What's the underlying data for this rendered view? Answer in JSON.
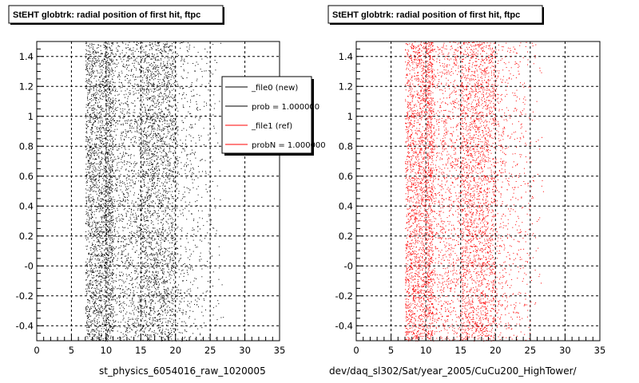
{
  "chart_data": [
    {
      "type": "scatter",
      "title": "StEHT globtrk: radial position of first hit, ftpc",
      "xlabel": "st_physics_6054016_raw_1020005",
      "ylabel": "",
      "xlim": [
        0,
        35
      ],
      "ylim": [
        -0.5,
        1.5
      ],
      "x_ticks": [
        "0",
        "5",
        "10",
        "15",
        "20",
        "25",
        "30",
        "35"
      ],
      "y_ticks": [
        "-0.4",
        "-0.2",
        "-0",
        "0.2",
        "0.4",
        "0.6",
        "0.8",
        "1",
        "1.2",
        "1.4"
      ],
      "grid": true,
      "marker_color": "#000000",
      "x_range_of_points": [
        7,
        27
      ],
      "legend": {
        "placement": "top-right",
        "entries": [
          {
            "label": "_file0 (new)",
            "color": "#000000"
          },
          {
            "label": "prob = 1.000000",
            "color": "#000000"
          },
          {
            "label": "_file1 (ref)",
            "color": "#ff0000"
          },
          {
            "label": "probN = 1.000000",
            "color": "#ff0000"
          }
        ]
      }
    },
    {
      "type": "scatter",
      "title": "StEHT globtrk: radial position of first hit, ftpc",
      "xlabel": "dev/daq_sl302/Sat/year_2005/CuCu200_HighTower/",
      "ylabel": "",
      "xlim": [
        0,
        35
      ],
      "ylim": [
        -0.5,
        1.5
      ],
      "x_ticks": [
        "0",
        "5",
        "10",
        "15",
        "20",
        "25",
        "30",
        "35"
      ],
      "y_ticks": [
        "-0.4",
        "-0.2",
        "-0",
        "0.2",
        "0.4",
        "0.6",
        "0.8",
        "1",
        "1.2",
        "1.4"
      ],
      "grid": true,
      "marker_color": "#ff0000",
      "x_range_of_points": [
        7,
        27
      ]
    }
  ]
}
